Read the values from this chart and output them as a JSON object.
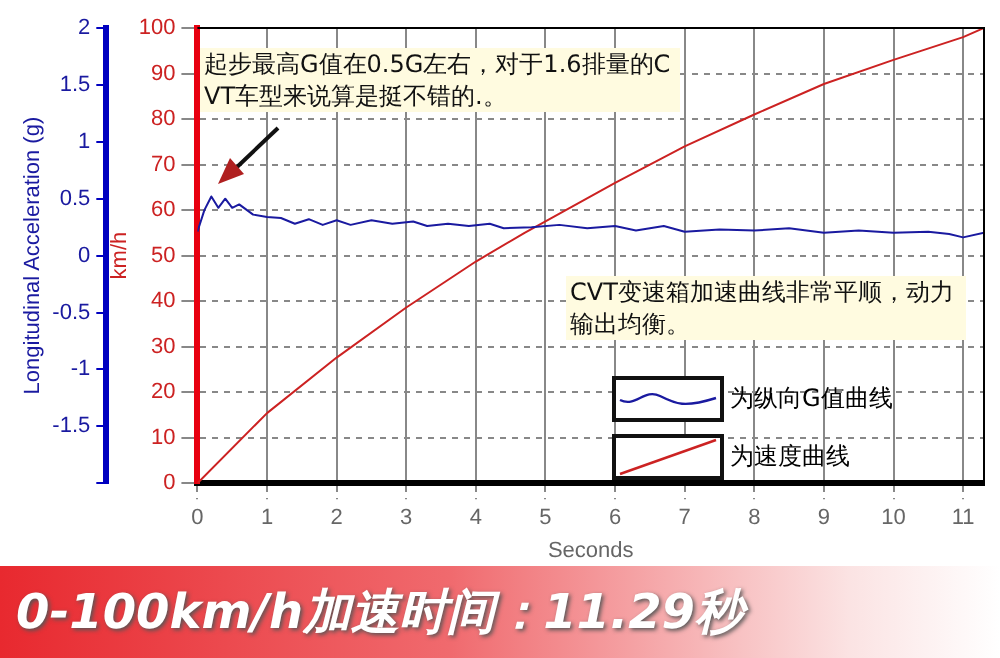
{
  "chart_data": {
    "type": "line",
    "title": "0-100km/h加速时间：11.29秒",
    "xlabel": "Seconds",
    "ylabel": "km/h",
    "y2label": "Longitudinal Acceleration (g)",
    "annotations": [
      "起步最高G值在0.5G左右，对于1.6排量的CVT车型来说算是挺不错的.。",
      "CVT变速箱加速曲线非常平顺，动力输出均衡。"
    ],
    "series": [
      {
        "name": "为纵向G值曲线",
        "color": "#1a1aa0",
        "axis": "y2",
        "x": [
          0,
          0.1,
          0.2,
          0.3,
          0.4,
          0.5,
          0.6,
          0.8,
          1.0,
          1.2,
          1.4,
          1.6,
          1.8,
          2.0,
          2.2,
          2.5,
          2.8,
          3.1,
          3.3,
          3.6,
          3.9,
          4.2,
          4.4,
          4.8,
          5.2,
          5.6,
          6.0,
          6.3,
          6.7,
          7.0,
          7.5,
          8.0,
          8.5,
          9.0,
          9.5,
          10.0,
          10.5,
          10.8,
          11.0,
          11.3
        ],
        "values": [
          0.21,
          0.4,
          0.52,
          0.42,
          0.5,
          0.42,
          0.45,
          0.36,
          0.34,
          0.33,
          0.28,
          0.32,
          0.27,
          0.31,
          0.27,
          0.31,
          0.28,
          0.3,
          0.26,
          0.28,
          0.26,
          0.28,
          0.24,
          0.25,
          0.27,
          0.24,
          0.26,
          0.22,
          0.26,
          0.21,
          0.23,
          0.22,
          0.24,
          0.2,
          0.22,
          0.2,
          0.21,
          0.19,
          0.16,
          0.2
        ]
      },
      {
        "name": "为速度曲线",
        "color": "#cc2222",
        "axis": "y",
        "x": [
          0,
          1,
          2,
          3,
          4,
          4.7,
          5,
          6,
          7,
          8,
          9,
          10,
          11,
          11.3
        ],
        "values": [
          0,
          15.4,
          27.6,
          38.6,
          48.7,
          55,
          57.5,
          66,
          74,
          81,
          87.7,
          93,
          98,
          100
        ]
      }
    ],
    "xlim": [
      0,
      11.3
    ],
    "xticks": [
      0,
      1,
      2,
      3,
      4,
      5,
      6,
      7,
      8,
      9,
      10,
      11
    ],
    "ylim": [
      0,
      100
    ],
    "yticks": [
      0,
      10,
      20,
      30,
      40,
      50,
      60,
      70,
      80,
      90,
      100
    ],
    "y2lim": [
      -2,
      2
    ],
    "y2ticks": [
      {
        "value": -2,
        "label": null
      },
      -1.5,
      -1,
      -0.5,
      0,
      0.5,
      1,
      1.5,
      2
    ],
    "grid": true,
    "legend": "bottom right",
    "line_style": "solid",
    "marker": "none"
  }
}
